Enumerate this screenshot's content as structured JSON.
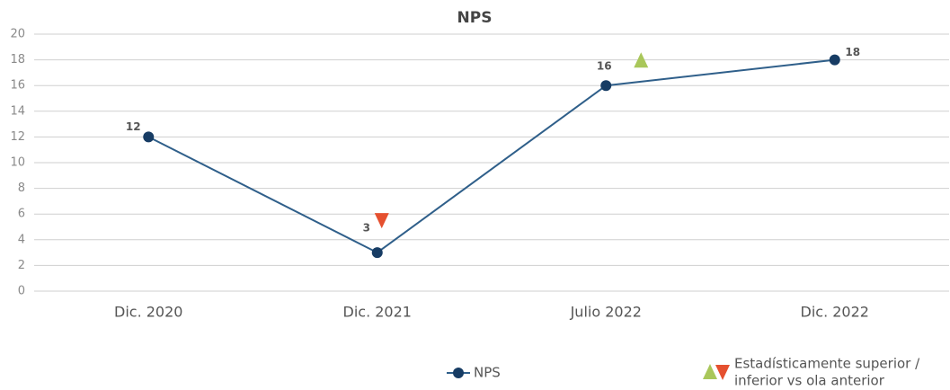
{
  "chart_data": {
    "type": "line",
    "title": "NPS",
    "categories": [
      "Dic. 2020",
      "Dic. 2021",
      "Julio 2022",
      "Dic. 2022"
    ],
    "series": [
      {
        "name": "NPS",
        "color": "#2f5f8a",
        "marker_color": "#173c64",
        "values": [
          12,
          3,
          16,
          18
        ]
      }
    ],
    "significance": [
      null,
      "down",
      "up",
      null
    ],
    "significance_colors": {
      "up": "#a9c75a",
      "down": "#e5502f"
    },
    "significance_legend": [
      "Estadísticamente superior /",
      "inferior vs ola anterior"
    ],
    "ylim": [
      0,
      20
    ],
    "yticks": [
      0,
      2,
      4,
      6,
      8,
      10,
      12,
      14,
      16,
      18,
      20
    ],
    "grid": true
  }
}
